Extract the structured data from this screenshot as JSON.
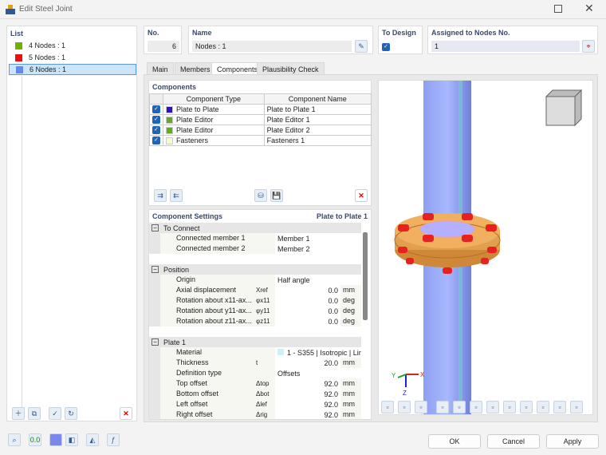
{
  "window": {
    "title": "Edit Steel Joint"
  },
  "list": {
    "header": "List",
    "items": [
      {
        "label": "4 Nodes : 1",
        "color": "#6db300"
      },
      {
        "label": "5 Nodes : 1",
        "color": "#e81010"
      },
      {
        "label": "6 Nodes : 1",
        "color": "#6688ee",
        "selected": true
      }
    ]
  },
  "no": {
    "label": "No.",
    "value": "6"
  },
  "name": {
    "label": "Name",
    "value": "Nodes : 1"
  },
  "to_design": {
    "label": "To Design",
    "checked": true
  },
  "assigned": {
    "label": "Assigned to Nodes No.",
    "value": "1"
  },
  "tabs": [
    "Main",
    "Members",
    "Components",
    "Plausibility Check"
  ],
  "active_tab": "Components",
  "components": {
    "header": "Components",
    "columns": [
      "Component Type",
      "Component Name"
    ],
    "rows": [
      {
        "type": "Plate to Plate",
        "name": "Plate to Plate 1",
        "color": "#3311bb",
        "checked": true
      },
      {
        "type": "Plate Editor",
        "name": "Plate Editor 1",
        "color": "#66aa22",
        "checked": true
      },
      {
        "type": "Plate Editor",
        "name": "Plate Editor 2",
        "color": "#66aa22",
        "checked": true
      },
      {
        "type": "Fasteners",
        "name": "Fasteners 1",
        "color": "#eeffcc",
        "checked": true
      }
    ]
  },
  "settings": {
    "header": "Component Settings",
    "context": "Plate to Plate 1",
    "groups": [
      {
        "title": "To Connect",
        "rows": [
          {
            "label": "Connected member 1",
            "sym": "",
            "value": "Member 1",
            "unit": ""
          },
          {
            "label": "Connected member 2",
            "sym": "",
            "value": "Member 2",
            "unit": ""
          }
        ]
      },
      {
        "title": "Position",
        "rows": [
          {
            "label": "Origin",
            "sym": "",
            "value": "Half angle",
            "unit": ""
          },
          {
            "label": "Axial displacement",
            "sym": "Xref",
            "value": "0.0",
            "unit": "mm"
          },
          {
            "label": "Rotation about x11-ax...",
            "sym": "φx11",
            "value": "0.0",
            "unit": "deg"
          },
          {
            "label": "Rotation about y11-ax...",
            "sym": "φy11",
            "value": "0.0",
            "unit": "deg"
          },
          {
            "label": "Rotation about z11-ax...",
            "sym": "φz11",
            "value": "0.0",
            "unit": "deg"
          }
        ]
      },
      {
        "title": "Plate 1",
        "rows": [
          {
            "label": "Material",
            "sym": "",
            "value": "1 - S355 | Isotropic | Linea...",
            "unit": ""
          },
          {
            "label": "Thickness",
            "sym": "t",
            "value": "20.0",
            "unit": "mm"
          },
          {
            "label": "Definition type",
            "sym": "",
            "value": "Offsets",
            "unit": ""
          },
          {
            "label": "Top offset",
            "sym": "Δtop",
            "value": "92.0",
            "unit": "mm"
          },
          {
            "label": "Bottom offset",
            "sym": "Δbot",
            "value": "92.0",
            "unit": "mm"
          },
          {
            "label": "Left offset",
            "sym": "Δlef",
            "value": "92.0",
            "unit": "mm"
          },
          {
            "label": "Right offset",
            "sym": "Δrig",
            "value": "92.0",
            "unit": "mm"
          }
        ]
      }
    ]
  },
  "axes": {
    "x": "X",
    "y": "Y",
    "z": "Z"
  },
  "buttons": {
    "ok": "OK",
    "cancel": "Cancel",
    "apply": "Apply"
  }
}
